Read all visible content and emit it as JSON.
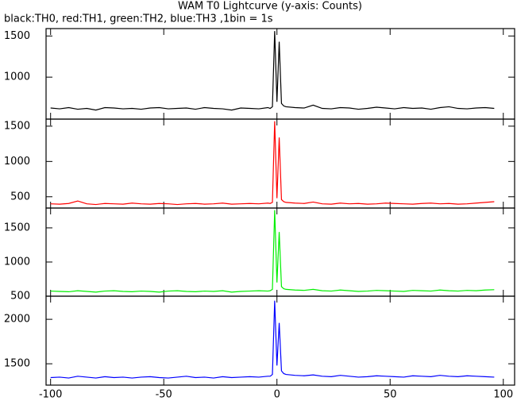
{
  "title": "WAM T0 Lightcurve (y-axis: Counts)",
  "subtitle": "black:TH0, red:TH1, green:TH2, blue:TH3 ,1bin = 1s",
  "chart_data": [
    {
      "type": "line",
      "xlim": [
        -102,
        105
      ],
      "xticks": [
        -100,
        -50,
        0,
        50,
        100
      ],
      "ylim": [
        490,
        1590
      ],
      "yticks": [
        1000,
        1500
      ],
      "x": [
        -100,
        -96,
        -92,
        -88,
        -84,
        -80,
        -76,
        -72,
        -68,
        -64,
        -60,
        -56,
        -52,
        -48,
        -44,
        -40,
        -36,
        -32,
        -28,
        -24,
        -20,
        -16,
        -12,
        -8,
        -4,
        -3,
        -2,
        -1,
        0,
        1,
        2,
        3,
        4,
        8,
        12,
        16,
        20,
        24,
        28,
        32,
        36,
        40,
        44,
        48,
        52,
        56,
        60,
        64,
        68,
        72,
        76,
        80,
        84,
        88,
        92,
        96
      ],
      "series": [
        {
          "name": "TH0",
          "color": "#000000",
          "values": [
            625,
            615,
            630,
            610,
            620,
            600,
            630,
            625,
            615,
            620,
            610,
            625,
            630,
            615,
            620,
            625,
            610,
            630,
            620,
            615,
            600,
            625,
            620,
            615,
            630,
            620,
            640,
            1560,
            700,
            1430,
            680,
            650,
            640,
            630,
            625,
            660,
            620,
            615,
            630,
            625,
            610,
            620,
            635,
            625,
            615,
            630,
            620,
            625,
            610,
            630,
            640,
            620,
            615,
            625,
            630,
            620
          ]
        }
      ]
    },
    {
      "type": "line",
      "xlim": [
        -102,
        105
      ],
      "xticks": [
        -100,
        -50,
        0,
        50,
        100
      ],
      "ylim": [
        340,
        1600
      ],
      "yticks": [
        500,
        1000,
        1500
      ],
      "x": [
        -100,
        -96,
        -92,
        -88,
        -84,
        -80,
        -76,
        -72,
        -68,
        -64,
        -60,
        -56,
        -52,
        -48,
        -44,
        -40,
        -36,
        -32,
        -28,
        -24,
        -20,
        -16,
        -12,
        -8,
        -4,
        -3,
        -2,
        -1,
        0,
        1,
        2,
        3,
        4,
        8,
        12,
        16,
        20,
        24,
        28,
        32,
        36,
        40,
        44,
        48,
        52,
        56,
        60,
        64,
        68,
        72,
        76,
        80,
        84,
        88,
        92,
        96
      ],
      "series": [
        {
          "name": "TH1",
          "color": "#ff0000",
          "values": [
            400,
            395,
            405,
            440,
            400,
            390,
            405,
            400,
            395,
            410,
            400,
            395,
            405,
            400,
            390,
            400,
            405,
            395,
            400,
            410,
            395,
            400,
            405,
            400,
            410,
            405,
            420,
            1570,
            480,
            1340,
            460,
            430,
            420,
            410,
            405,
            425,
            400,
            395,
            410,
            400,
            405,
            395,
            400,
            410,
            405,
            400,
            395,
            405,
            410,
            400,
            405,
            395,
            400,
            410,
            420,
            430
          ]
        }
      ]
    },
    {
      "type": "line",
      "xlim": [
        -102,
        105
      ],
      "xticks": [
        -100,
        -50,
        0,
        50,
        100
      ],
      "ylim": [
        500,
        1790
      ],
      "yticks": [
        500,
        1000,
        1500
      ],
      "x": [
        -100,
        -96,
        -92,
        -88,
        -84,
        -80,
        -76,
        -72,
        -68,
        -64,
        -60,
        -56,
        -52,
        -48,
        -44,
        -40,
        -36,
        -32,
        -28,
        -24,
        -20,
        -16,
        -12,
        -8,
        -4,
        -3,
        -2,
        -1,
        0,
        1,
        2,
        3,
        4,
        8,
        12,
        16,
        20,
        24,
        28,
        32,
        36,
        40,
        44,
        48,
        52,
        56,
        60,
        64,
        68,
        72,
        76,
        80,
        84,
        88,
        92,
        96
      ],
      "series": [
        {
          "name": "TH2",
          "color": "#00ee00",
          "values": [
            575,
            570,
            565,
            580,
            570,
            560,
            575,
            580,
            570,
            565,
            575,
            570,
            560,
            575,
            580,
            570,
            565,
            575,
            570,
            580,
            560,
            570,
            575,
            580,
            575,
            580,
            600,
            1760,
            700,
            1440,
            640,
            610,
            600,
            590,
            585,
            600,
            580,
            575,
            590,
            580,
            570,
            575,
            585,
            580,
            575,
            570,
            585,
            580,
            575,
            590,
            580,
            575,
            585,
            580,
            590,
            595
          ]
        }
      ]
    },
    {
      "type": "line",
      "xlim": [
        -102,
        105
      ],
      "xticks": [
        -100,
        -50,
        0,
        50,
        100
      ],
      "ylim": [
        1260,
        2260
      ],
      "yticks": [
        1500,
        2000
      ],
      "x": [
        -100,
        -96,
        -92,
        -88,
        -84,
        -80,
        -76,
        -72,
        -68,
        -64,
        -60,
        -56,
        -52,
        -48,
        -44,
        -40,
        -36,
        -32,
        -28,
        -24,
        -20,
        -16,
        -12,
        -8,
        -4,
        -3,
        -2,
        -1,
        0,
        1,
        2,
        3,
        4,
        8,
        12,
        16,
        20,
        24,
        28,
        32,
        36,
        40,
        44,
        48,
        52,
        56,
        60,
        64,
        68,
        72,
        76,
        80,
        84,
        88,
        92,
        96
      ],
      "series": [
        {
          "name": "TH3",
          "color": "#0000ff",
          "values": [
            1345,
            1350,
            1340,
            1360,
            1350,
            1340,
            1355,
            1345,
            1350,
            1340,
            1350,
            1355,
            1345,
            1340,
            1350,
            1360,
            1345,
            1350,
            1340,
            1355,
            1345,
            1350,
            1355,
            1350,
            1360,
            1360,
            1380,
            2210,
            1480,
            1960,
            1420,
            1390,
            1380,
            1370,
            1365,
            1375,
            1360,
            1355,
            1370,
            1360,
            1350,
            1355,
            1365,
            1360,
            1355,
            1350,
            1365,
            1360,
            1355,
            1370,
            1360,
            1355,
            1365,
            1360,
            1355,
            1350
          ]
        }
      ]
    }
  ]
}
